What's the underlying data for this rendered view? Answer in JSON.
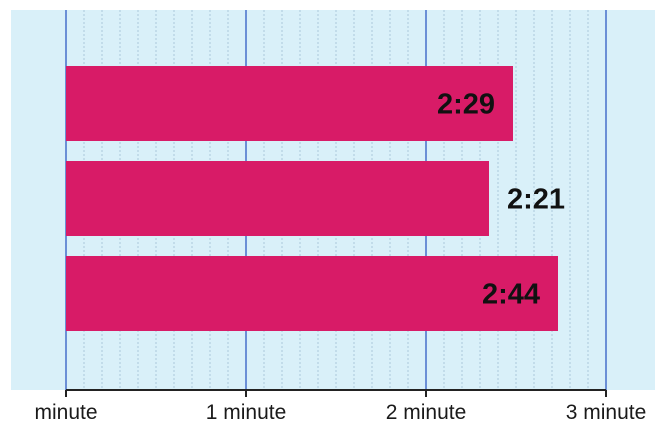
{
  "chart_data": {
    "type": "bar",
    "orientation": "horizontal",
    "values": [
      149,
      141,
      164
    ],
    "value_units": "seconds",
    "data_labels": [
      "2:29",
      "2:21",
      "2:44"
    ],
    "xlim": [
      0,
      180
    ],
    "xticks": [
      0,
      60,
      120,
      180
    ],
    "xtick_labels": [
      "minute",
      "1 minute",
      "2 minute",
      "3 minute"
    ],
    "minor_grid_step": 6,
    "grid": true,
    "colors": {
      "bar": "#d81b67",
      "plot_background": "#d9f0f9",
      "major_grid": "#6b8fd6",
      "minor_grid": "#aac7dc",
      "axis": "#222222"
    }
  }
}
